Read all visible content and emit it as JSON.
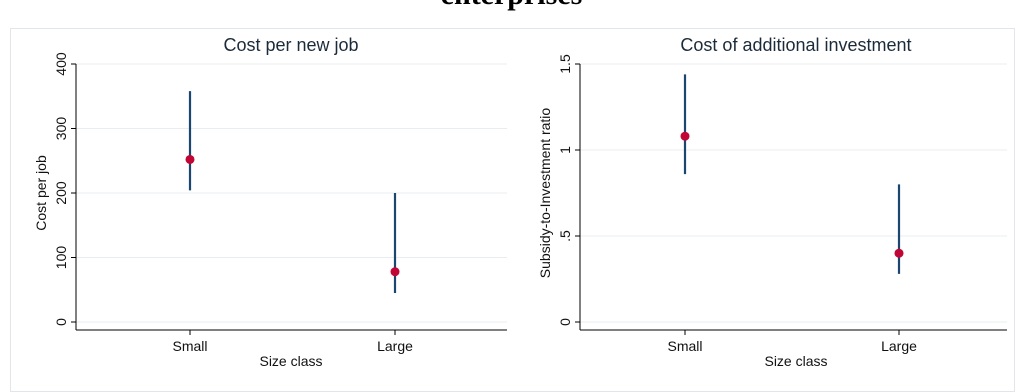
{
  "page": {
    "header_fragment": "enterprises"
  },
  "chart_data": [
    {
      "type": "scatter",
      "title": "Cost per new job",
      "xlabel": "Size class",
      "ylabel": "Cost per job",
      "categories": [
        "Small",
        "Large"
      ],
      "series": [
        {
          "points": [
            {
              "x": "Small",
              "y": 252,
              "lower": 204,
              "upper": 358
            },
            {
              "x": "Large",
              "y": 78,
              "lower": 45,
              "upper": 200
            }
          ]
        }
      ],
      "ylim": [
        0,
        400
      ],
      "yticks": [
        0,
        100,
        200,
        300,
        400
      ],
      "ytick_labels": [
        "0",
        "100",
        "200",
        "300",
        "400"
      ],
      "grid": true,
      "legend": "none",
      "colors": {
        "ci": "#1a476f",
        "point": "#c10534"
      }
    },
    {
      "type": "scatter",
      "title": "Cost of additional investment",
      "xlabel": "Size class",
      "ylabel": "Subsidy-to-Investment ratio",
      "categories": [
        "Small",
        "Large"
      ],
      "series": [
        {
          "points": [
            {
              "x": "Small",
              "y": 1.08,
              "lower": 0.86,
              "upper": 1.44
            },
            {
              "x": "Large",
              "y": 0.4,
              "lower": 0.28,
              "upper": 0.8
            }
          ]
        }
      ],
      "ylim": [
        0,
        1.5
      ],
      "yticks": [
        0,
        0.5,
        1,
        1.5
      ],
      "ytick_labels": [
        "0",
        ".5",
        "1",
        "1.5"
      ],
      "grid": true,
      "legend": "none",
      "colors": {
        "ci": "#1a476f",
        "point": "#c10534"
      }
    }
  ]
}
